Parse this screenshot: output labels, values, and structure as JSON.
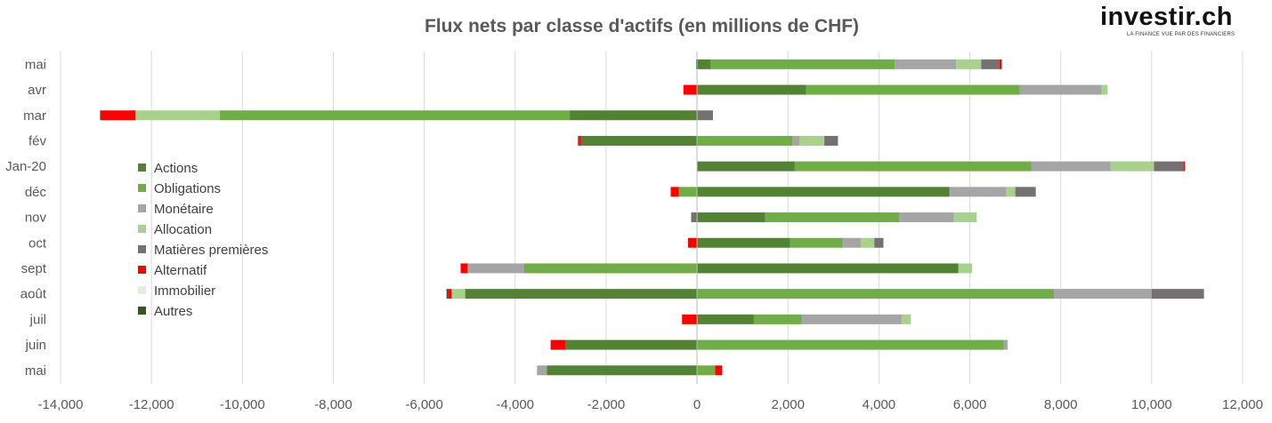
{
  "logo": {
    "text": "investir.ch",
    "tagline": "LA FINANCE VUE PAR DES FINANCIERS"
  },
  "chart_data": {
    "type": "bar",
    "orientation": "horizontal",
    "stacked": true,
    "title": "Flux nets par classe d'actifs (en millions de CHF)",
    "xlabel": "",
    "ylabel": "",
    "xlim": [
      -14000,
      12000
    ],
    "x_ticks": [
      -14000,
      -12000,
      -10000,
      -8000,
      -6000,
      -4000,
      -2000,
      0,
      2000,
      4000,
      6000,
      8000,
      10000,
      12000
    ],
    "x_tick_labels": [
      "-14,000",
      "-12,000",
      "-10,000",
      "-8,000",
      "-6,000",
      "-4,000",
      "-2,000",
      "0",
      "2,000",
      "4,000",
      "6,000",
      "8,000",
      "10,000",
      "12,000"
    ],
    "grid": "vertical",
    "legend_position": "left-center",
    "categories": [
      "mai",
      "avr",
      "mar",
      "fév",
      "Jan-20",
      "déc",
      "nov",
      "oct",
      "sept",
      "août",
      "juil",
      "juin",
      "mai"
    ],
    "colors": [
      "#548235",
      "#70ad47",
      "#a5a5a5",
      "#a9d18e",
      "#767171",
      "#ff0000",
      "#e2efda",
      "#375623"
    ],
    "series": [
      {
        "name": "Actions",
        "values": [
          300,
          2400,
          -2800,
          -2550,
          2150,
          5550,
          1500,
          2050,
          5750,
          -5100,
          1250,
          -2900,
          -3300
        ]
      },
      {
        "name": "Obligations",
        "values": [
          4050,
          4700,
          -7700,
          2100,
          5200,
          -400,
          2950,
          1150,
          -3800,
          7850,
          1050,
          6750,
          400
        ]
      },
      {
        "name": "Monétaire",
        "values": [
          1350,
          1800,
          0,
          150,
          1750,
          1250,
          1200,
          400,
          -1250,
          2150,
          2200,
          80,
          -220
        ]
      },
      {
        "name": "Allocation",
        "values": [
          550,
          130,
          -1850,
          550,
          950,
          200,
          500,
          300,
          300,
          -300,
          200,
          0,
          0
        ]
      },
      {
        "name": "Matières premières",
        "values": [
          400,
          0,
          350,
          300,
          650,
          450,
          -130,
          200,
          0,
          1150,
          0,
          0,
          0
        ]
      },
      {
        "name": "Alternatif",
        "values": [
          50,
          -300,
          -750,
          -50,
          30,
          -180,
          0,
          -200,
          -150,
          -80,
          -330,
          -320,
          150
        ]
      },
      {
        "name": "Immobilier",
        "values": [
          0,
          0,
          0,
          0,
          0,
          0,
          0,
          0,
          0,
          0,
          0,
          0,
          0
        ]
      },
      {
        "name": "Autres",
        "values": [
          -20,
          0,
          -30,
          -20,
          0,
          0,
          0,
          0,
          0,
          -30,
          0,
          0,
          0
        ]
      }
    ]
  }
}
